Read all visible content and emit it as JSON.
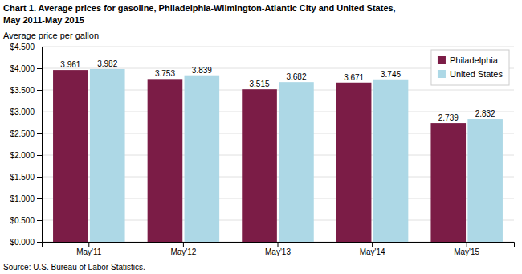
{
  "chart_data": {
    "type": "bar",
    "title": "Chart 1. Average prices for gasoline, Philadelphia-Wilmington-Atlantic City and United States,",
    "subtitle": "May 2011-May 2015",
    "ylabel": "Average price per gallon",
    "annotations": [
      "Source: U.S. Bureau of Labor Statistics."
    ],
    "categories": [
      "May'11",
      "May'12",
      "May'13",
      "May'14",
      "May'15"
    ],
    "series": [
      {
        "name": "Philadelphia",
        "color": "#7B1C46",
        "values": [
          3.961,
          3.753,
          3.515,
          3.671,
          2.739
        ]
      },
      {
        "name": "United States",
        "color": "#ADD8E6",
        "values": [
          3.982,
          3.839,
          3.682,
          3.745,
          2.832
        ]
      }
    ],
    "ylim": [
      0,
      4.5
    ],
    "yticks": [
      {
        "value": 0.0,
        "label": "$0.000"
      },
      {
        "value": 0.5,
        "label": "$0.500"
      },
      {
        "value": 1.0,
        "label": "$1.000"
      },
      {
        "value": 1.5,
        "label": "$1.500"
      },
      {
        "value": 2.0,
        "label": "$2.000"
      },
      {
        "value": 2.5,
        "label": "$2.500"
      },
      {
        "value": 3.0,
        "label": "$3.000"
      },
      {
        "value": 3.5,
        "label": "$3.500"
      },
      {
        "value": 4.0,
        "label": "$4.000"
      },
      {
        "value": 4.5,
        "label": "$4.500"
      }
    ],
    "grid": true,
    "legend": "upper right",
    "data_labels": true
  }
}
